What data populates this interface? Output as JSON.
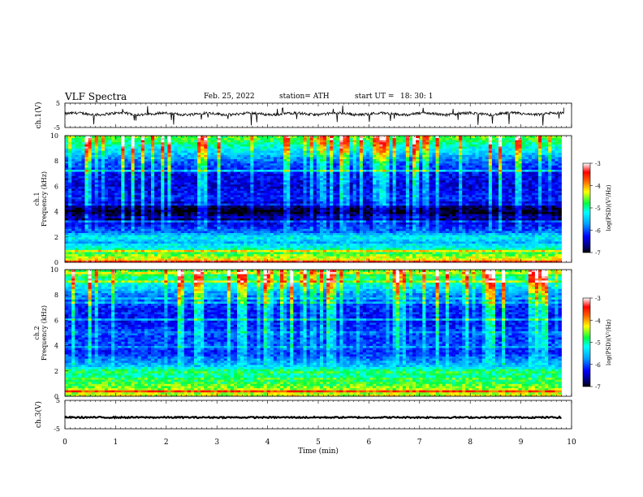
{
  "header": {
    "title": "VLF  Spectra",
    "date": "Feb. 25, 2022",
    "station": "station= ATH",
    "start_label": "start  UT  =",
    "start_time": "18: 30: 1"
  },
  "chart_data": [
    {
      "type": "line",
      "ylabel": "ch.1(V)",
      "ylim": [
        -5,
        5
      ],
      "yticks": [
        "5",
        "-5"
      ],
      "xlim": [
        0,
        10
      ],
      "series_note": "waveform with baseline ~1 V, frequent short negative spikes",
      "line_color": "#000000",
      "grid": false
    },
    {
      "type": "heatmap",
      "ylabel": "ch.1\nFrequency (kHz)",
      "ylim": [
        0,
        10
      ],
      "yticks": [
        "0",
        "2",
        "4",
        "6",
        "8",
        "10"
      ],
      "xlim": [
        0,
        9.8
      ],
      "colorbar": {
        "label": "log(PSD)(V²/Hz)",
        "range": [
          -7,
          -3
        ],
        "ticks": [
          "-3",
          "-4",
          "-5",
          "-6",
          "-7"
        ]
      },
      "band_levels_by_kHz": [
        {
          "f": 0.2,
          "level": -4.2
        },
        {
          "f": 0.6,
          "level": -4.6
        },
        {
          "f": 1.0,
          "level": -5.0
        },
        {
          "f": 1.6,
          "level": -5.6
        },
        {
          "f": 2.0,
          "level": -5.2
        },
        {
          "f": 2.5,
          "level": -6.0
        },
        {
          "f": 3.0,
          "level": -6.3
        },
        {
          "f": 3.5,
          "level": -6.8
        },
        {
          "f": 4.0,
          "level": -7.0
        },
        {
          "f": 4.5,
          "level": -6.7
        },
        {
          "f": 5.0,
          "level": -6.2
        },
        {
          "f": 6.0,
          "level": -6.4
        },
        {
          "f": 7.0,
          "level": -6.3
        },
        {
          "f": 8.0,
          "level": -5.9
        },
        {
          "f": 9.0,
          "level": -5.2
        },
        {
          "f": 10.0,
          "level": -4.6
        }
      ]
    },
    {
      "type": "heatmap",
      "ylabel": "ch.2\nFrequency (kHz)",
      "ylim": [
        0,
        10
      ],
      "yticks": [
        "0",
        "2",
        "4",
        "6",
        "8",
        "10"
      ],
      "xlim": [
        0,
        9.8
      ],
      "colorbar": {
        "label": "log(PSD)(V²/Hz)",
        "range": [
          -7,
          -3
        ],
        "ticks": [
          "-3",
          "-4",
          "-5",
          "-6",
          "-7"
        ]
      },
      "band_levels_by_kHz": [
        {
          "f": 0.2,
          "level": -4.4
        },
        {
          "f": 0.6,
          "level": -4.5
        },
        {
          "f": 1.0,
          "level": -4.7
        },
        {
          "f": 1.6,
          "level": -5.0
        },
        {
          "f": 2.0,
          "level": -4.8
        },
        {
          "f": 2.5,
          "level": -5.6
        },
        {
          "f": 3.0,
          "level": -5.9
        },
        {
          "f": 3.5,
          "level": -6.2
        },
        {
          "f": 4.0,
          "level": -6.0
        },
        {
          "f": 4.5,
          "level": -6.1
        },
        {
          "f": 5.0,
          "level": -6.0
        },
        {
          "f": 6.0,
          "level": -6.3
        },
        {
          "f": 7.0,
          "level": -6.2
        },
        {
          "f": 8.0,
          "level": -5.8
        },
        {
          "f": 9.0,
          "level": -5.1
        },
        {
          "f": 10.0,
          "level": -4.6
        }
      ]
    },
    {
      "type": "line",
      "ylabel": "ch.3(V)",
      "ylim": [
        -5,
        5
      ],
      "yticks": [
        "5",
        "-5"
      ],
      "xlim": [
        0,
        10
      ],
      "series_note": "flat waveform near -1 V",
      "x": [
        0,
        9.8
      ],
      "y": [
        -1,
        -1
      ],
      "xlabel": "Time  (min)",
      "xticks": [
        "0",
        "1",
        "2",
        "3",
        "4",
        "5",
        "6",
        "7",
        "8",
        "9",
        "10"
      ]
    }
  ]
}
